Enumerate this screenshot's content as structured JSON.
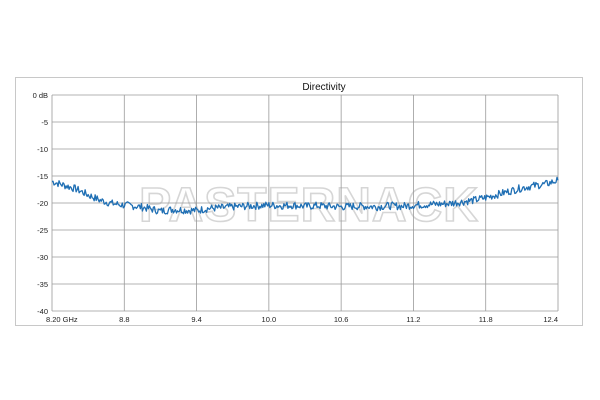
{
  "chart_data": {
    "type": "line",
    "title": "Directivity",
    "xlabel": "",
    "ylabel": "",
    "x_tick_labels": [
      "8.20 GHz",
      "8.8",
      "9.4",
      "10.0",
      "10.6",
      "11.2",
      "11.8",
      "12.4"
    ],
    "x_ticks": [
      8.2,
      8.8,
      9.4,
      10.0,
      10.6,
      11.2,
      11.8,
      12.4
    ],
    "y_tick_labels": [
      "0 dB",
      "-5",
      "-10",
      "-15",
      "-20",
      "-25",
      "-30",
      "-35",
      "-40"
    ],
    "y_ticks": [
      0,
      -5,
      -10,
      -15,
      -20,
      -25,
      -30,
      -35,
      -40
    ],
    "xlim": [
      8.2,
      12.4
    ],
    "ylim": [
      -40,
      0
    ],
    "grid": true,
    "watermark": "PASTERNACK",
    "series": [
      {
        "name": "",
        "color": "#1f6fb4",
        "x": [
          8.2,
          8.3,
          8.4,
          8.5,
          8.6,
          8.7,
          8.8,
          8.9,
          9.0,
          9.1,
          9.2,
          9.3,
          9.4,
          9.5,
          9.6,
          9.7,
          9.8,
          9.9,
          10.0,
          10.1,
          10.2,
          10.3,
          10.4,
          10.5,
          10.6,
          10.7,
          10.8,
          10.9,
          11.0,
          11.1,
          11.2,
          11.3,
          11.4,
          11.5,
          11.6,
          11.7,
          11.8,
          11.9,
          12.0,
          12.1,
          12.2,
          12.3,
          12.4
        ],
        "y": [
          -16.0,
          -16.7,
          -17.4,
          -18.5,
          -19.5,
          -20.1,
          -20.4,
          -20.6,
          -21.0,
          -21.5,
          -21.2,
          -21.3,
          -21.4,
          -21.0,
          -20.9,
          -20.7,
          -20.6,
          -20.5,
          -20.4,
          -20.5,
          -20.4,
          -20.6,
          -20.5,
          -20.6,
          -20.7,
          -20.6,
          -20.6,
          -20.7,
          -20.5,
          -20.6,
          -20.4,
          -20.3,
          -20.2,
          -20.1,
          -19.8,
          -19.5,
          -19.0,
          -18.4,
          -17.8,
          -17.2,
          -16.8,
          -16.5,
          -15.8
        ]
      }
    ]
  }
}
